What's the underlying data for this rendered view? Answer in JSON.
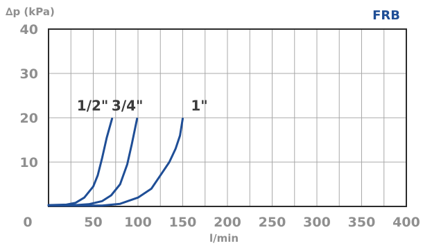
{
  "chart_data": {
    "type": "line",
    "title": "",
    "brand_label": "FRB",
    "ylabel": "∆p (kPa)",
    "xlabel": "l/min",
    "xlim": [
      0,
      400
    ],
    "ylim": [
      0,
      40
    ],
    "x_ticks": [
      0,
      50,
      100,
      150,
      200,
      250,
      300,
      350,
      400
    ],
    "y_ticks": [
      10,
      20,
      30,
      40
    ],
    "grid": true,
    "line_color": "#1f4e96",
    "series": [
      {
        "name": "1/2\"",
        "points": [
          [
            0,
            0.3
          ],
          [
            20,
            0.4
          ],
          [
            30,
            0.8
          ],
          [
            40,
            2
          ],
          [
            50,
            4.5
          ],
          [
            55,
            7
          ],
          [
            60,
            11
          ],
          [
            65,
            15.5
          ],
          [
            71,
            19.8
          ]
        ]
      },
      {
        "name": "3/4\"",
        "points": [
          [
            0,
            0.3
          ],
          [
            30,
            0.3
          ],
          [
            45,
            0.5
          ],
          [
            60,
            1.2
          ],
          [
            70,
            2.5
          ],
          [
            80,
            5
          ],
          [
            88,
            9.5
          ],
          [
            93,
            14
          ],
          [
            99,
            19.8
          ]
        ]
      },
      {
        "name": "1\"",
        "points": [
          [
            0,
            0.2
          ],
          [
            60,
            0.2
          ],
          [
            80,
            0.6
          ],
          [
            100,
            2
          ],
          [
            115,
            4
          ],
          [
            125,
            7
          ],
          [
            135,
            10
          ],
          [
            142,
            13
          ],
          [
            147,
            16
          ],
          [
            150,
            19.8
          ]
        ]
      }
    ]
  }
}
